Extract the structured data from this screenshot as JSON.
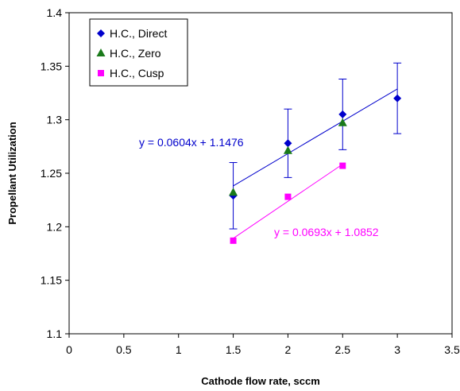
{
  "chart_data": {
    "type": "scatter",
    "xlabel": "Cathode flow rate, sccm",
    "ylabel": "Propellant Utilization",
    "xlim": [
      0,
      3.5
    ],
    "ylim": [
      1.1,
      1.4
    ],
    "xticks": [
      "0",
      "0.5",
      "1",
      "1.5",
      "2",
      "2.5",
      "3",
      "3.5"
    ],
    "yticks": [
      "1.1",
      "1.15",
      "1.2",
      "1.25",
      "1.3",
      "1.35",
      "1.4"
    ],
    "grid": false,
    "legend_position": "top-left",
    "series": [
      {
        "name": "H.C., Direct",
        "marker": "diamond",
        "color": "#0000cc",
        "x": [
          1.5,
          2.0,
          2.5,
          3.0
        ],
        "y": [
          1.229,
          1.278,
          1.305,
          1.32
        ],
        "error": [
          0.031,
          0.032,
          0.033,
          0.033
        ],
        "trendline": {
          "slope": 0.0604,
          "intercept": 1.1476,
          "x_range": [
            1.5,
            3.0
          ],
          "label": "y = 0.0604x + 1.1476"
        }
      },
      {
        "name": "H.C., Zero",
        "marker": "triangle",
        "color": "#1a7a1a",
        "x": [
          1.5,
          2.0,
          2.5
        ],
        "y": [
          1.232,
          1.271,
          1.297
        ]
      },
      {
        "name": "H.C., Cusp",
        "marker": "square",
        "color": "#ff00ff",
        "x": [
          1.5,
          2.0,
          2.5
        ],
        "y": [
          1.187,
          1.228,
          1.257
        ],
        "trendline": {
          "slope": 0.0693,
          "intercept": 1.0852,
          "x_range": [
            1.5,
            2.5
          ],
          "label": "y = 0.0693x + 1.0852"
        }
      }
    ]
  }
}
